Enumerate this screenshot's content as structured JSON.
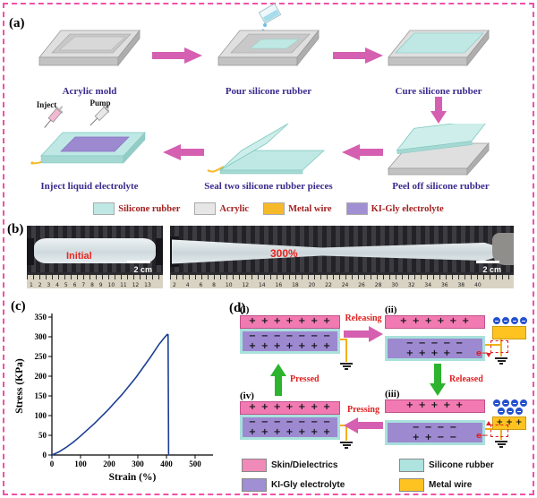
{
  "panel_a": {
    "tag": "(a)",
    "step_acrylic_mold": "Acrylic mold",
    "step_pour": "Pour silicone rubber",
    "step_cure": "Cure silicone rubber",
    "step_peel": "Peel off silicone rubber",
    "step_seal": "Seal two silicone rubber pieces",
    "step_inject": "Inject liquid electrolyte",
    "inject_label": "Inject",
    "pump_label": "Pump",
    "legend": [
      {
        "label": "Silicone rubber",
        "color": "#bfe8e4"
      },
      {
        "label": "Acrylic",
        "color": "#e6e6e6"
      },
      {
        "label": "Metal wire",
        "color": "#f6b92a"
      },
      {
        "label": "KI-Gly electrolyte",
        "color": "#a08fd2"
      }
    ]
  },
  "panel_b": {
    "tag": "(b)",
    "initial_label": "Initial",
    "stretch_label": "300%",
    "scale_left": "2 cm",
    "scale_right": "2 cm",
    "ruler_left": "1 2 3 4 5 6 7 8 9 10 11 12 13",
    "ruler_right": "2 4 6 8 10 12 14 16 18 20 22 24 26 28 30 32 34 36 38 40"
  },
  "panel_c": {
    "tag": "(c)"
  },
  "panel_d": {
    "tag": "(d)",
    "states": [
      {
        "num": "(i)",
        "skin": "+ + + + + + +",
        "etop": "− − − − − − −",
        "ebottom": "+ + + + + + +"
      },
      {
        "num": "(ii)",
        "skin": "+ + + + + +",
        "etop": "− − − − −",
        "ebottom": "+ + + + −"
      },
      {
        "num": "(iii)",
        "skin": "+ + + + +",
        "etop": "− − − −",
        "ebottom": "+ + − −"
      },
      {
        "num": "(iv)",
        "skin": "+ + + + + + +",
        "etop": "− − − − − − −",
        "ebottom": "+ + + + + + +"
      }
    ],
    "metal_plus": "+ + +",
    "transition_releasing": "Releasing",
    "transition_released": "Released",
    "transition_pressing": "Pressing",
    "transition_pressed": "Pressed",
    "electron_label": "e−",
    "legend": [
      {
        "label": "Skin/Dielectrics",
        "color": "#f08ab8"
      },
      {
        "label": "Silicone rubber",
        "color": "#aee3e0"
      },
      {
        "label": "KI-Gly electrolyte",
        "color": "#a08fd2"
      },
      {
        "label": "Metal wire",
        "color": "#ffc321"
      }
    ]
  },
  "chart_data": {
    "type": "line",
    "title": "",
    "xlabel": "Strain (%)",
    "ylabel": "Stress (KPa)",
    "xlim": [
      0,
      560
    ],
    "ylim": [
      0,
      350
    ],
    "xticks": [
      0,
      100,
      200,
      300,
      400,
      500
    ],
    "yticks": [
      0,
      50,
      100,
      150,
      200,
      250,
      300,
      350
    ],
    "legend_position": "none",
    "grid": false,
    "line_color": "#1c3f94",
    "x": [
      0,
      25,
      50,
      75,
      100,
      150,
      200,
      250,
      300,
      350,
      380,
      400,
      410,
      413,
      415
    ],
    "y": [
      0,
      8,
      19,
      32,
      47,
      79,
      115,
      154,
      198,
      248,
      280,
      298,
      306,
      305,
      0
    ]
  }
}
